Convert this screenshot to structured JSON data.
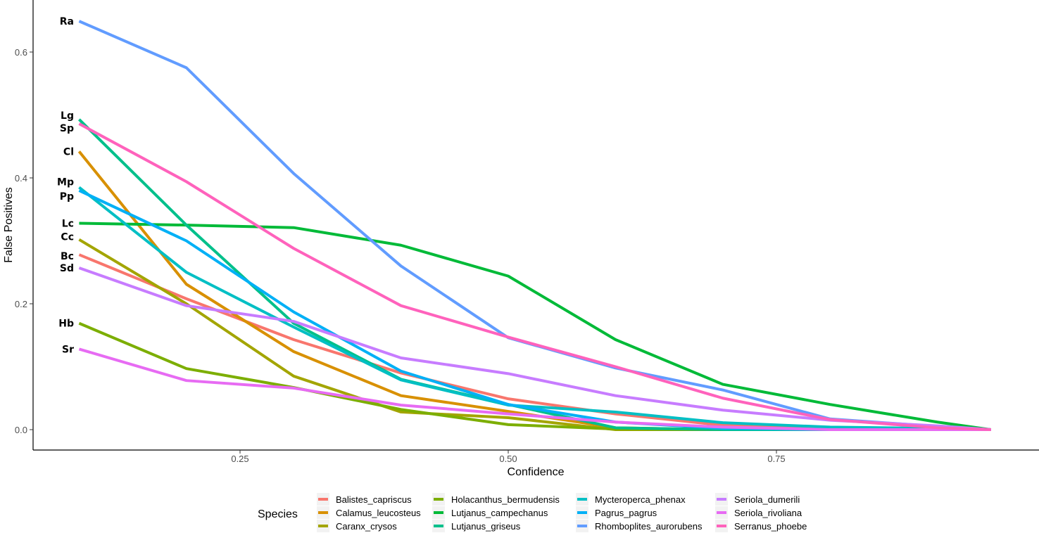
{
  "chart_data": {
    "type": "line",
    "xlabel": "Confidence",
    "ylabel": "False Positives",
    "xlim": [
      0.05,
      0.98
    ],
    "ylim": [
      -0.035,
      0.685
    ],
    "xticks": [
      0.25,
      0.5,
      0.75
    ],
    "xtick_labels": [
      "0.25",
      "0.50",
      "0.75"
    ],
    "yticks": [
      0.0,
      0.2,
      0.4,
      0.6
    ],
    "ytick_labels": [
      "0.0",
      "0.2",
      "0.4",
      "0.6"
    ],
    "grid": false,
    "legend": {
      "title": "Species",
      "placement": "bottom"
    },
    "x": [
      0.1,
      0.2,
      0.3,
      0.4,
      0.5,
      0.6,
      0.7,
      0.8,
      0.9,
      0.95
    ],
    "series": [
      {
        "name": "Balistes_capriscus",
        "label": "Bc",
        "color": "#F8766D",
        "values": [
          0.278,
          0.208,
          0.143,
          0.09,
          0.049,
          0.025,
          0.007,
          0.002,
          0.0,
          0.0
        ]
      },
      {
        "name": "Calamus_leucosteus",
        "label": "Cl",
        "color": "#D89000",
        "values": [
          0.442,
          0.231,
          0.124,
          0.054,
          0.029,
          0.003,
          0.0,
          0.0,
          0.0,
          0.0
        ]
      },
      {
        "name": "Caranx_crysos",
        "label": "Cc",
        "color": "#A3A500",
        "values": [
          0.302,
          0.2,
          0.085,
          0.028,
          0.019,
          0.0,
          0.0,
          0.0,
          0.0,
          0.0
        ]
      },
      {
        "name": "Holacanthus_bermudensis",
        "label": "Hb",
        "color": "#7CAE00",
        "values": [
          0.169,
          0.097,
          0.067,
          0.032,
          0.008,
          0.001,
          0.0,
          0.0,
          0.0,
          0.0
        ]
      },
      {
        "name": "Lutjanus_campechanus",
        "label": "Lc",
        "color": "#00BA38",
        "values": [
          0.328,
          0.325,
          0.321,
          0.293,
          0.244,
          0.143,
          0.072,
          0.04,
          0.012,
          0.0
        ]
      },
      {
        "name": "Lutjanus_griseus",
        "label": "Lg",
        "color": "#00C08B",
        "values": [
          0.493,
          0.325,
          0.169,
          0.08,
          0.04,
          0.003,
          0.0,
          0.0,
          0.0,
          0.0
        ]
      },
      {
        "name": "Mycteroperca_phenax",
        "label": "Mp",
        "color": "#00BFC4",
        "values": [
          0.385,
          0.25,
          0.163,
          0.079,
          0.039,
          0.028,
          0.011,
          0.004,
          0.002,
          0.0
        ]
      },
      {
        "name": "Pagrus_pagrus",
        "label": "Pp",
        "color": "#00B0F6",
        "values": [
          0.38,
          0.3,
          0.187,
          0.093,
          0.04,
          0.012,
          0.002,
          0.0,
          0.0,
          0.0
        ]
      },
      {
        "name": "Rhomboplites_aurorubens",
        "label": "Ra",
        "color": "#619CFF",
        "values": [
          0.649,
          0.575,
          0.407,
          0.26,
          0.146,
          0.098,
          0.063,
          0.017,
          0.005,
          0.0
        ]
      },
      {
        "name": "Seriola_dumerili",
        "label": "Sd",
        "color": "#C77CFF",
        "values": [
          0.257,
          0.197,
          0.172,
          0.114,
          0.089,
          0.054,
          0.031,
          0.015,
          0.006,
          0.0
        ]
      },
      {
        "name": "Seriola_rivoliana",
        "label": "Sr",
        "color": "#E76BF3",
        "values": [
          0.128,
          0.078,
          0.066,
          0.039,
          0.025,
          0.012,
          0.004,
          0.0,
          0.0,
          0.0
        ]
      },
      {
        "name": "Serranus_phoebe",
        "label": "Sp",
        "color": "#FF62BC",
        "values": [
          0.486,
          0.394,
          0.288,
          0.197,
          0.147,
          0.1,
          0.05,
          0.016,
          0.003,
          0.0
        ]
      }
    ]
  }
}
